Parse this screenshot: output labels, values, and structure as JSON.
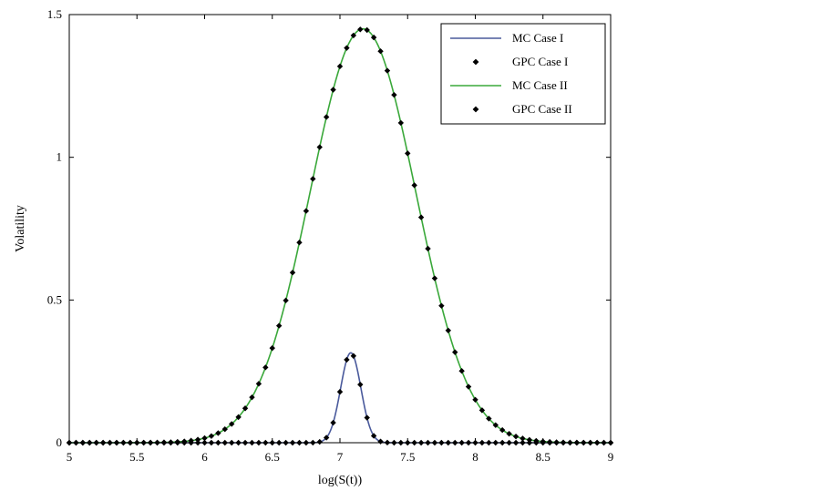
{
  "chart_data": {
    "type": "line",
    "title": "",
    "xlabel": "log(S(t))",
    "ylabel": "Volatility",
    "xlim": [
      5,
      9
    ],
    "ylim": [
      0,
      1.5
    ],
    "xticks": [
      5,
      5.5,
      6,
      6.5,
      7,
      7.5,
      8,
      8.5,
      9
    ],
    "xtick_labels": [
      "5",
      "5.5",
      "6",
      "6.5",
      "7",
      "7.5",
      "8",
      "8.5",
      "9"
    ],
    "yticks": [
      0,
      0.5,
      1,
      1.5
    ],
    "ytick_labels": [
      "0",
      "0.5",
      "1",
      "1.5"
    ],
    "grid": false,
    "legend_position": "top-right",
    "series": [
      {
        "name": "MC Case I",
        "style": "line",
        "color": "#4a5a9c",
        "curve": {
          "form": "gaussian",
          "peak": 0.315,
          "center": 7.08,
          "width": 0.075
        }
      },
      {
        "name": "GPC Case I",
        "style": "markers",
        "color": "#000000",
        "marker": "diamond",
        "x_start": 5,
        "x_end": 9,
        "x_step": 0.05,
        "curve": {
          "form": "gaussian",
          "peak": 0.315,
          "center": 7.08,
          "width": 0.075
        }
      },
      {
        "name": "MC Case II",
        "style": "line",
        "color": "#3aa83a",
        "curve": {
          "form": "gaussian",
          "peak": 1.45,
          "center": 7.17,
          "width": 0.39
        }
      },
      {
        "name": "GPC Case II",
        "style": "markers",
        "color": "#000000",
        "marker": "diamond",
        "x_start": 5,
        "x_end": 9,
        "x_step": 0.05,
        "curve": {
          "form": "gaussian",
          "peak": 1.45,
          "center": 7.17,
          "width": 0.39
        }
      }
    ]
  }
}
